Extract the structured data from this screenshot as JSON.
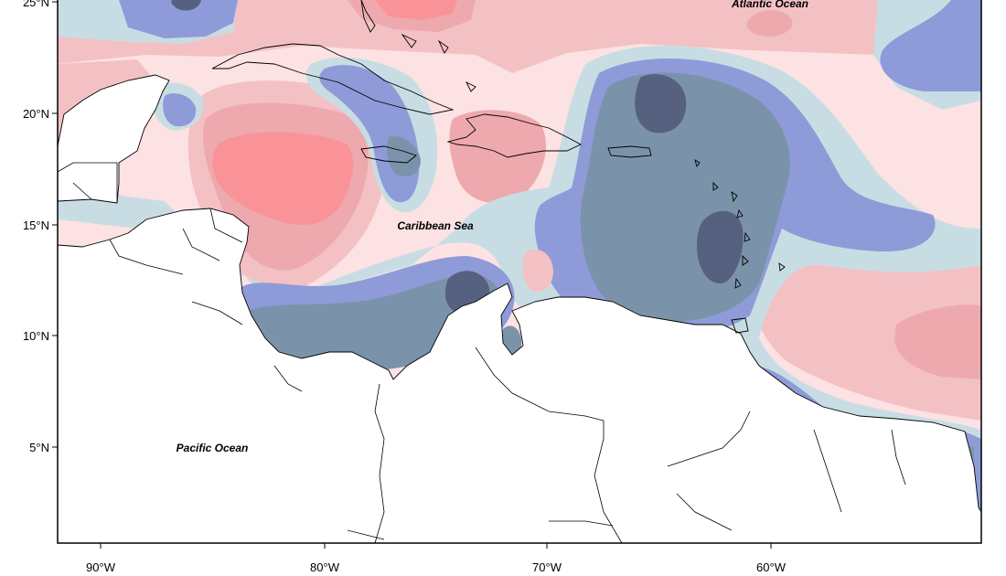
{
  "map": {
    "place_labels": {
      "atlantic": "Atlantic Ocean",
      "caribbean": "Caribbean Sea",
      "pacific": "Pacific Ocean"
    },
    "lat_ticks": [
      "25°N",
      "20°N",
      "15°N",
      "10°N",
      "5°N"
    ],
    "lon_ticks": [
      "90°W",
      "80°W",
      "70°W",
      "60°W"
    ],
    "colors": {
      "strong_negative": "#56607f",
      "negative": "#7b93aa",
      "moderate_negative": "#8e9bd8",
      "weak_negative": "#c8dde3",
      "weak_positive": "#fde2e3",
      "moderate_positive": "#f3c1c4",
      "positive": "#eda9ae",
      "strong_positive": "#fa9397",
      "land": "#ffffff",
      "frame": "#000000"
    }
  }
}
